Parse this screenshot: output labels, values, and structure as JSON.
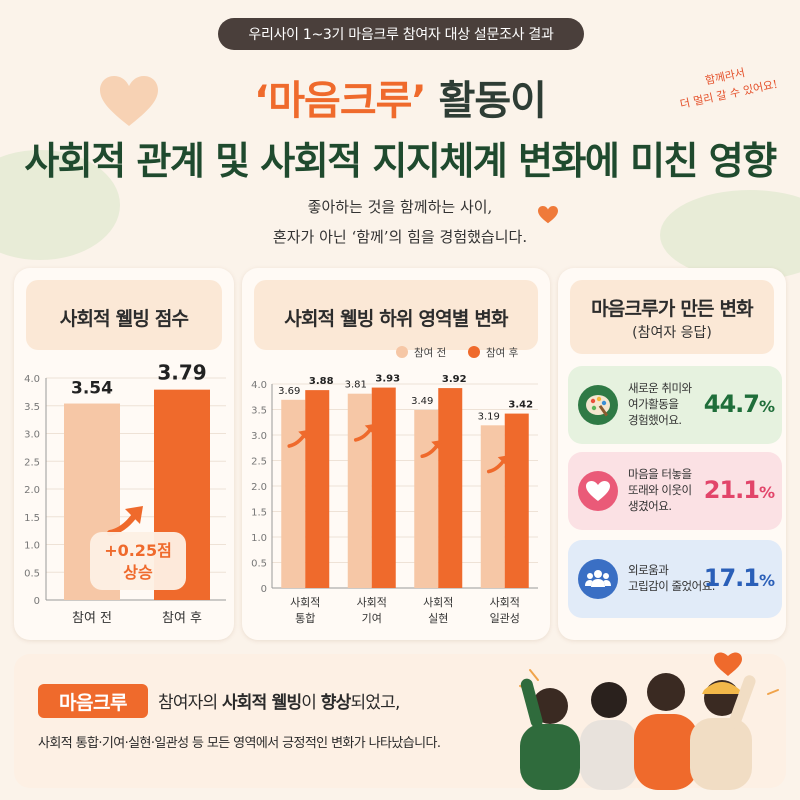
{
  "header": {
    "badge": "우리사이 1~3기 마음크루 참여자 대상 설문조사 결과",
    "title_accent": "‘마음크루’",
    "title_rest": "활동이",
    "title_line2": "사회적 관계 및 사회적 지지체계 변화에 미친 영향",
    "handnote_line1": "함께라서",
    "handnote_line2": "더 멀리 갈 수 있어요!",
    "subtitle_line1": "좋아하는 것을 함께하는 사이,",
    "subtitle_line2": "혼자가 아닌 ‘함께’의 힘을 경험했습니다."
  },
  "colors": {
    "before": "#f6c7a6",
    "after": "#ef6a2c",
    "accent": "#ef6a2c",
    "title_green": "#1f4a2e"
  },
  "panel_scores": {
    "title": "사회적 웰빙 점수",
    "increase_label_line1": "+0.25점",
    "increase_label_line2": "상승"
  },
  "panel_domains": {
    "title": "사회적 웰빙 하위 영역별 변화",
    "legend_before": "참여 전",
    "legend_after": "참여 후"
  },
  "panel_changes": {
    "title": "마음크루가 만든 변화",
    "subtitle": "(참여자 응답)",
    "items": [
      {
        "icon": "palette-icon",
        "text_line1": "새로운 취미와",
        "text_line2": "여가활동을",
        "text_line3": "경험했어요.",
        "value": "44.7",
        "unit": "%",
        "color": "#1f6e3a",
        "bg": "#e6f2df"
      },
      {
        "icon": "heart-icon",
        "text_line1": "마음을 터놓을",
        "text_line2": "또래와 이웃이",
        "text_line3": "생겼어요.",
        "value": "21.1",
        "unit": "%",
        "color": "#e2456a",
        "bg": "#fbe1e4"
      },
      {
        "icon": "people-icon",
        "text_line1": "외로움과",
        "text_line2": "고립감이 줄었어요.",
        "text_line3": "",
        "value": "17.1",
        "unit": "%",
        "color": "#2a5fb8",
        "bg": "#e1ebf8"
      }
    ]
  },
  "bottom": {
    "brand": "마음크루",
    "line1_a": "참여자의 ",
    "line1_b": "사회적 웰빙",
    "line1_c": "이 ",
    "line1_d": "향상",
    "line1_e": "되었고,",
    "line2": "사회적 통합·기여·실현·일관성 등 모든 영역에서 긍정적인 변화가 나타났습니다."
  },
  "chart_data": [
    {
      "type": "bar",
      "title": "사회적 웰빙 점수",
      "categories": [
        "참여 전",
        "참여 후"
      ],
      "values": [
        3.54,
        3.79
      ],
      "ylim": [
        0,
        4.0
      ],
      "yticks": [
        0,
        0.5,
        1.0,
        1.5,
        2.0,
        2.5,
        3.0,
        3.5,
        4.0
      ],
      "ytick_labels": [
        "0",
        "0.5",
        "1.0",
        "1.5",
        "2.0",
        "2.5",
        "3.0",
        "3.5",
        "4.0"
      ],
      "value_labels": [
        "3.54",
        "3.79"
      ],
      "grid": true
    },
    {
      "type": "bar",
      "title": "사회적 웰빙 하위 영역별 변화",
      "categories": [
        [
          "사회적",
          "통합"
        ],
        [
          "사회적",
          "기여"
        ],
        [
          "사회적",
          "실현"
        ],
        [
          "사회적",
          "일관성"
        ]
      ],
      "series": [
        {
          "name": "참여 전",
          "values": [
            3.69,
            3.81,
            3.49,
            3.19
          ],
          "labels": [
            "3.69",
            "3.81",
            "3.49",
            "3.19"
          ]
        },
        {
          "name": "참여 후",
          "values": [
            3.88,
            3.93,
            3.92,
            3.42
          ],
          "labels": [
            "3.88",
            "3.93",
            "3.92",
            "3.42"
          ]
        }
      ],
      "ylim": [
        0,
        4.0
      ],
      "yticks": [
        0,
        0.5,
        1.0,
        1.5,
        2.0,
        2.5,
        3.0,
        3.5,
        4.0
      ],
      "ytick_labels": [
        "0",
        "0.5",
        "1.0",
        "1.5",
        "2.0",
        "2.5",
        "3.0",
        "3.5",
        "4.0"
      ],
      "legend": "top-right",
      "grid": true
    }
  ]
}
